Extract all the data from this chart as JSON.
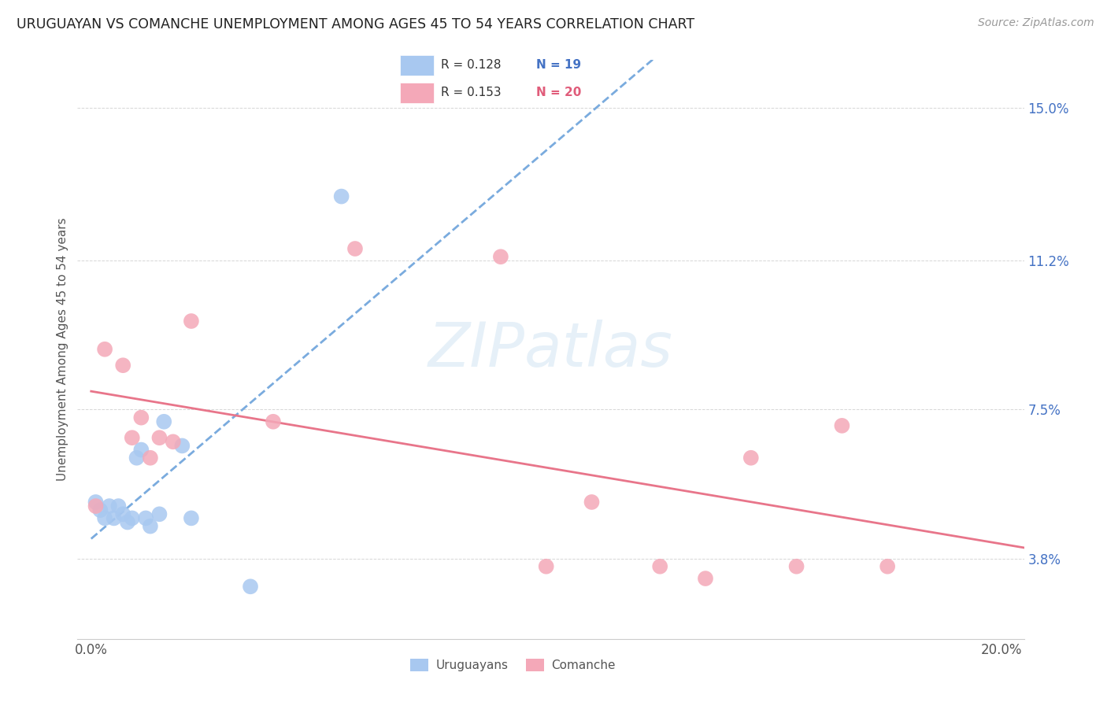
{
  "title": "URUGUAYAN VS COMANCHE UNEMPLOYMENT AMONG AGES 45 TO 54 YEARS CORRELATION CHART",
  "source": "Source: ZipAtlas.com",
  "ylabel": "Unemployment Among Ages 45 to 54 years",
  "color_uruguayan": "#a8c8f0",
  "color_comanche": "#f4a8b8",
  "color_line_uruguayan": "#7aabde",
  "color_line_comanche": "#e8758a",
  "watermark": "ZIPatlas",
  "legend_r1": "R = 0.128",
  "legend_n1": "N = 19",
  "legend_r2": "R = 0.153",
  "legend_n2": "N = 20",
  "uruguayan_x": [
    0.001,
    0.002,
    0.003,
    0.004,
    0.005,
    0.006,
    0.007,
    0.008,
    0.009,
    0.01,
    0.011,
    0.012,
    0.013,
    0.015,
    0.016,
    0.02,
    0.022,
    0.035,
    0.055
  ],
  "uruguayan_y": [
    0.052,
    0.05,
    0.048,
    0.051,
    0.048,
    0.051,
    0.049,
    0.047,
    0.048,
    0.063,
    0.065,
    0.048,
    0.046,
    0.049,
    0.072,
    0.066,
    0.048,
    0.031,
    0.128
  ],
  "comanche_x": [
    0.001,
    0.003,
    0.007,
    0.009,
    0.011,
    0.013,
    0.015,
    0.018,
    0.022,
    0.04,
    0.058,
    0.09,
    0.1,
    0.11,
    0.125,
    0.135,
    0.145,
    0.155,
    0.165,
    0.175
  ],
  "comanche_y": [
    0.051,
    0.09,
    0.086,
    0.068,
    0.073,
    0.063,
    0.068,
    0.067,
    0.097,
    0.072,
    0.115,
    0.113,
    0.036,
    0.052,
    0.036,
    0.033,
    0.063,
    0.036,
    0.071,
    0.036
  ],
  "xlim": [
    -0.003,
    0.205
  ],
  "ylim": [
    0.018,
    0.162
  ],
  "ytick_positions": [
    0.038,
    0.075,
    0.112,
    0.15
  ],
  "ytick_labels": [
    "3.8%",
    "7.5%",
    "11.2%",
    "15.0%"
  ],
  "xtick_positions": [
    0.0,
    0.04,
    0.08,
    0.12,
    0.16,
    0.2
  ],
  "xtick_labels": [
    "0.0%",
    "",
    "",
    "",
    "",
    "20.0%"
  ]
}
